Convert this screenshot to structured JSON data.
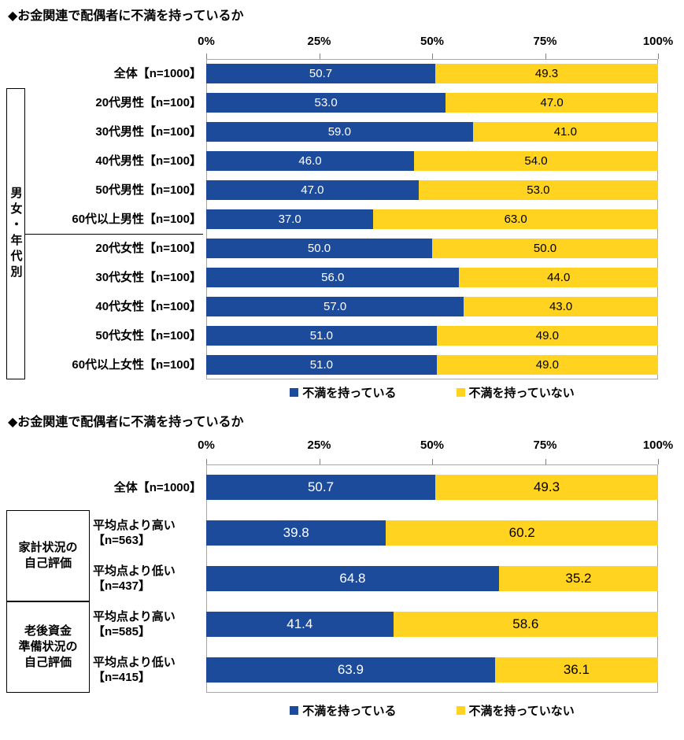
{
  "colors": {
    "series1": "#1C4B9C",
    "series2": "#FFD320",
    "value_text_on_series1": "#FFFFFF",
    "value_text_on_series2": "#000000",
    "plot_border": "#A6A6A6",
    "box_border": "#000000"
  },
  "legend": [
    {
      "id": "dissatisfied",
      "label": "不満を持っている",
      "color_key": "series1"
    },
    {
      "id": "not-dissatisfied",
      "label": "不満を持っていない",
      "color_key": "series2"
    }
  ],
  "chart_data": [
    {
      "type": "bar",
      "variant": "stacked-horizontal-100",
      "title": "◆お金関連で配偶者に不満を持っているか",
      "x_axis": {
        "ticks": [
          "0%",
          "25%",
          "50%",
          "75%",
          "100%"
        ],
        "range": [
          0,
          100
        ],
        "unit": "%"
      },
      "categories": [
        "全体【n=1000】",
        "20代男性【n=100】",
        "30代男性【n=100】",
        "40代男性【n=100】",
        "50代男性【n=100】",
        "60代以上男性【n=100】",
        "20代女性【n=100】",
        "30代女性【n=100】",
        "40代女性【n=100】",
        "50代女性【n=100】",
        "60代以上女性【n=100】"
      ],
      "series": [
        {
          "name": "不満を持っている",
          "values": [
            50.7,
            53.0,
            59.0,
            46.0,
            47.0,
            37.0,
            50.0,
            56.0,
            57.0,
            51.0,
            51.0
          ]
        },
        {
          "name": "不満を持っていない",
          "values": [
            49.3,
            47.0,
            41.0,
            54.0,
            53.0,
            63.0,
            50.0,
            44.0,
            43.0,
            49.0,
            49.0
          ]
        }
      ],
      "side_box": {
        "label": "男女・年代別",
        "from_row": 1,
        "to_row": 10
      },
      "divider_after_row": 5,
      "legend_position": "bottom"
    },
    {
      "type": "bar",
      "variant": "stacked-horizontal-100",
      "title": "◆お金関連で配偶者に不満を持っているか",
      "x_axis": {
        "ticks": [
          "0%",
          "25%",
          "50%",
          "75%",
          "100%"
        ],
        "range": [
          0,
          100
        ],
        "unit": "%"
      },
      "categories": [
        "全体【n=1000】",
        "平均点より高い【n=563】",
        "平均点より低い【n=437】",
        "平均点より高い【n=585】",
        "平均点より低い【n=415】"
      ],
      "row_label_lines": [
        [
          "全体【n=1000】"
        ],
        [
          "平均点より高い",
          "【n=563】"
        ],
        [
          "平均点より低い",
          "【n=437】"
        ],
        [
          "平均点より高い",
          "【n=585】"
        ],
        [
          "平均点より低い",
          "【n=415】"
        ]
      ],
      "row_label_align": [
        "right",
        "left",
        "left",
        "left",
        "left"
      ],
      "series": [
        {
          "name": "不満を持っている",
          "values": [
            50.7,
            39.8,
            64.8,
            41.4,
            63.9
          ]
        },
        {
          "name": "不満を持っていない",
          "values": [
            49.3,
            60.2,
            35.2,
            58.6,
            36.1
          ]
        }
      ],
      "side_groups": [
        {
          "label_lines": [
            "家計状況の",
            "自己評価"
          ],
          "from_row": 1,
          "to_row": 2
        },
        {
          "label_lines": [
            "老後資金",
            "準備状況の",
            "自己評価"
          ],
          "from_row": 3,
          "to_row": 4
        }
      ],
      "legend_position": "bottom"
    }
  ]
}
